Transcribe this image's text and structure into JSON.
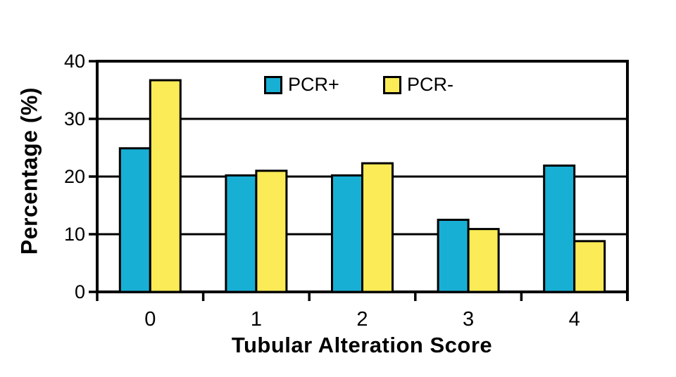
{
  "chart_data": {
    "type": "bar",
    "title": "",
    "xlabel": "Tubular Alteration Score",
    "ylabel": "Percentage (%)",
    "categories": [
      "0",
      "1",
      "2",
      "3",
      "4"
    ],
    "series": [
      {
        "key": "pcr-positive",
        "name": "PCR+",
        "color": "#18AFD5",
        "values": [
          24.9,
          20.2,
          20.2,
          12.5,
          21.9
        ]
      },
      {
        "key": "pcr-negative",
        "name": "PCR-",
        "color": "#FAEB57",
        "values": [
          36.7,
          21.0,
          22.3,
          10.9,
          8.8
        ]
      }
    ],
    "ylim": [
      0,
      40
    ],
    "yticks": [
      0,
      10,
      20,
      30,
      40
    ],
    "grid": true,
    "legend_position": "inside-top-center",
    "bar_outline_color": "#000000",
    "axis_color": "#000000",
    "background_color": "#ffffff"
  }
}
